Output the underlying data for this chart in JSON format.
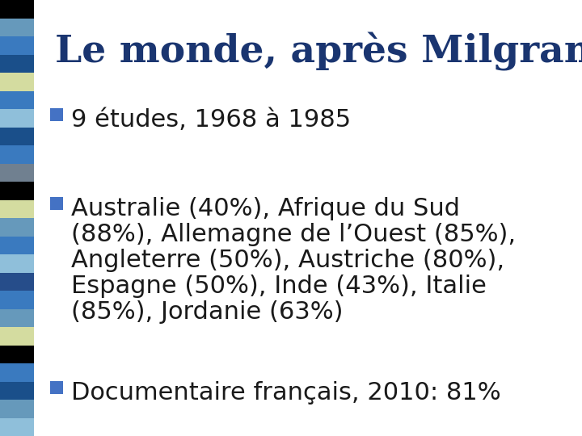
{
  "title": "Le monde, après Milgram",
  "title_color": "#1a3570",
  "title_fontsize": 34,
  "background_color": "#ffffff",
  "bullet_color": "#4472c4",
  "text_color": "#1a1a1a",
  "bullet1_text": "9 études, 1968 à 1985",
  "bullet2_line1": "Australie (40%), Afrique du Sud",
  "bullet2_line2": "(88%), Allemagne de l’Ouest (85%),",
  "bullet2_line3": "Angleterre (50%), Austriche (80%),",
  "bullet2_line4": "Espagne (50%), Inde (43%), Italie",
  "bullet2_line5": "(85%), Jordanie (63%)",
  "bullet3_text": "Documentaire français, 2010: 81%",
  "text_fontsize": 22,
  "stripe_colors": [
    "#8fbfda",
    "#6699bb",
    "#1a4f8a",
    "#3a7abf",
    "#000000",
    "#d4dca0",
    "#6699bb",
    "#3a7abf",
    "#264d8a",
    "#8fbfda",
    "#3a7abf",
    "#6699bb",
    "#d4dca0",
    "#000000",
    "#708090",
    "#3a7abf",
    "#1a4f8a",
    "#8fbfda",
    "#3a7abf",
    "#d4dca0",
    "#1a4f8a",
    "#3a7abf",
    "#6699bb",
    "#000000"
  ]
}
